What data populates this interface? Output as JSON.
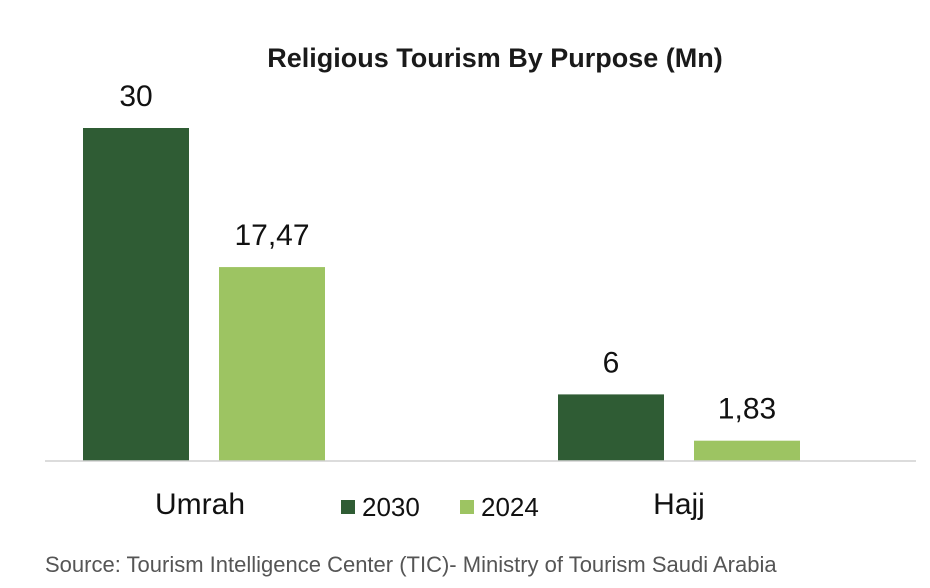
{
  "chart_data": {
    "type": "bar",
    "title": "Religious Tourism By Purpose (Mn)",
    "categories": [
      "Umrah",
      "Hajj"
    ],
    "series": [
      {
        "name": "2030",
        "values": [
          30,
          6
        ],
        "labels": [
          "30",
          "6"
        ],
        "color": "#2f5c34"
      },
      {
        "name": "2024",
        "values": [
          17.47,
          1.83
        ],
        "labels": [
          "17,47",
          "1,83"
        ],
        "color": "#9dc462"
      }
    ],
    "ylim": [
      0,
      30
    ],
    "xlabel": "",
    "ylabel": "",
    "legend": "bottom-center",
    "grid": false
  },
  "source": "Source: Tourism Intelligence Center (TIC)- Ministry of Tourism Saudi Arabia"
}
